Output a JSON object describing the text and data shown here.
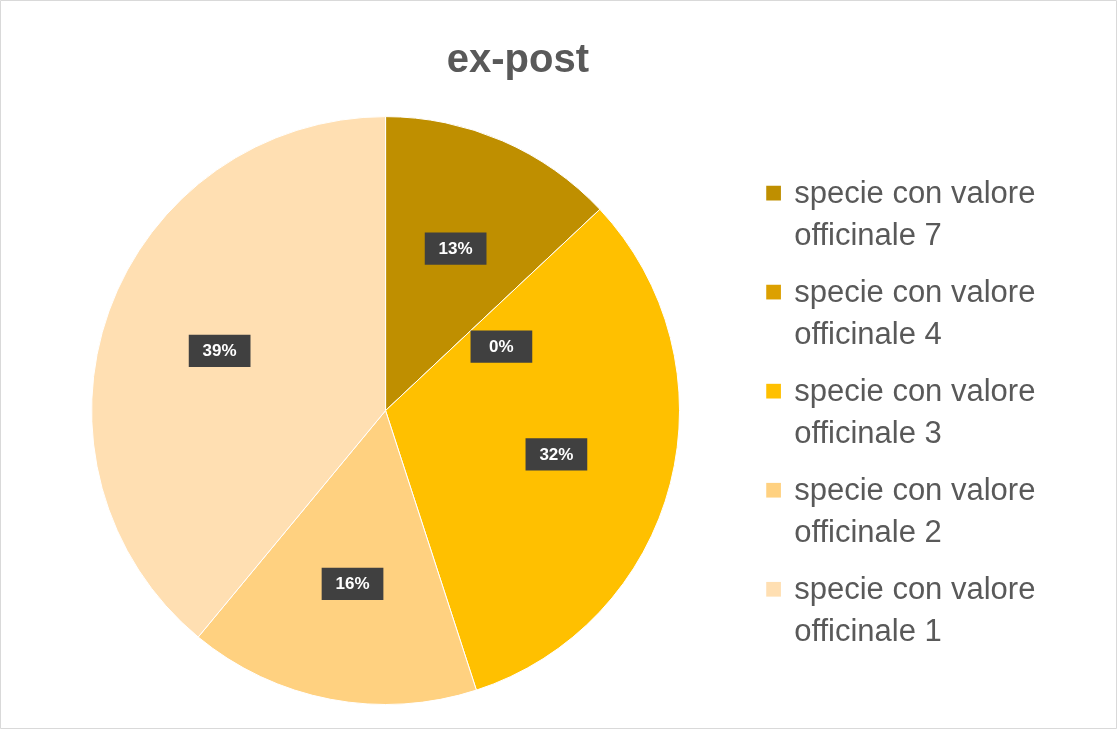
{
  "chart_data": {
    "type": "pie",
    "title": "ex-post",
    "categories": [
      "specie con valore officinale 7",
      "specie con valore officinale 4",
      "specie con valore officinale 3",
      "specie con valore officinale 2",
      "specie con valore officinale 1"
    ],
    "values": [
      13,
      0,
      32,
      16,
      39
    ],
    "colors": [
      "#bf8f00",
      "#dca000",
      "#ffc000",
      "#ffd180",
      "#ffdfb2"
    ],
    "value_labels": [
      "13%",
      "0%",
      "32%",
      "16%",
      "39%"
    ],
    "legend": "right"
  }
}
